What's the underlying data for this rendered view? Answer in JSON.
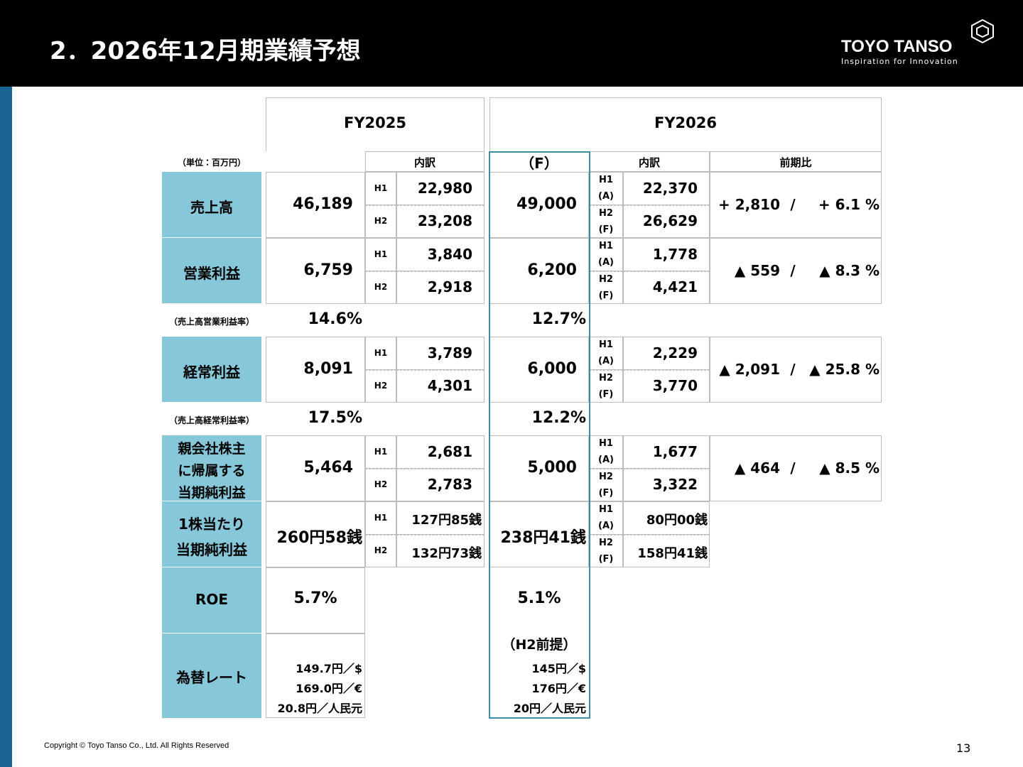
{
  "header": {
    "title": "2．2026年12月期業績予想",
    "logo": "TOYO TANSO",
    "tagline": "Inspiration for Innovation"
  },
  "table": {
    "unit": "（単位：百万円）",
    "fy2025": "FY2025",
    "fy2026": "FY2026",
    "breakdown": "内訳",
    "forecast_label": "（F）",
    "yoy_header": "前期比",
    "h1": "H1",
    "h2": "H2",
    "actual_tag": "(A)",
    "forecast_tag": "(F)",
    "separator": "/",
    "rows": [
      {
        "label": [
          "売上高"
        ],
        "fy2025": "46,189",
        "fy2025_h1": "22,980",
        "fy2025_h2": "23,208",
        "fy2026": "49,000",
        "fy2026_h1": "22,370",
        "fy2026_h2": "26,629",
        "yoy_abs": "+ 2,810",
        "yoy_pct": "+ 6.1 %"
      },
      {
        "label": [
          "営業利益"
        ],
        "fy2025": "6,759",
        "fy2025_h1": "3,840",
        "fy2025_h2": "2,918",
        "fy2026": "6,200",
        "fy2026_h1": "1,778",
        "fy2026_h2": "4,421",
        "yoy_abs": "▲ 559",
        "yoy_pct": "▲ 8.3 %"
      },
      {
        "label": [
          "経常利益"
        ],
        "fy2025": "8,091",
        "fy2025_h1": "3,789",
        "fy2025_h2": "4,301",
        "fy2026": "6,000",
        "fy2026_h1": "2,229",
        "fy2026_h2": "3,770",
        "yoy_abs": "▲ 2,091",
        "yoy_pct": "▲ 25.8 %"
      },
      {
        "label": [
          "親会社株主",
          "に帰属する",
          "当期純利益"
        ],
        "fy2025": "5,464",
        "fy2025_h1": "2,681",
        "fy2025_h2": "2,783",
        "fy2026": "5,000",
        "fy2026_h1": "1,677",
        "fy2026_h2": "3,322",
        "yoy_abs": "▲ 464",
        "yoy_pct": "▲ 8.5 %"
      },
      {
        "label": [
          "1株当たり",
          "当期純利益"
        ],
        "fy2025": "260円58銭",
        "fy2025_h1": "127円85銭",
        "fy2025_h2": "132円73銭",
        "fy2026": "238円41銭",
        "fy2026_h1": "80円00銭",
        "fy2026_h2": "158円41銭"
      }
    ],
    "margins": [
      {
        "label": "（売上高営業利益率）",
        "fy2025": "14.6%",
        "fy2026": "12.7%"
      },
      {
        "label": "（売上高経常利益率）",
        "fy2025": "17.5%",
        "fy2026": "12.2%"
      }
    ],
    "roe": {
      "label": "ROE",
      "fy2025": "5.7%",
      "fy2026": "5.1%"
    },
    "fx": {
      "label": "為替レート",
      "fy2025": [
        "149.7円／$",
        "169.0円／€",
        "20.8円／人民元"
      ],
      "fy2026_note": "（H2前提）",
      "fy2026": [
        "145円／$",
        "176円／€",
        "20円／人民元"
      ]
    }
  },
  "footer": {
    "copyright": "Copyright © Toyo Tanso Co., Ltd. All Rights Reserved",
    "page": "13"
  }
}
